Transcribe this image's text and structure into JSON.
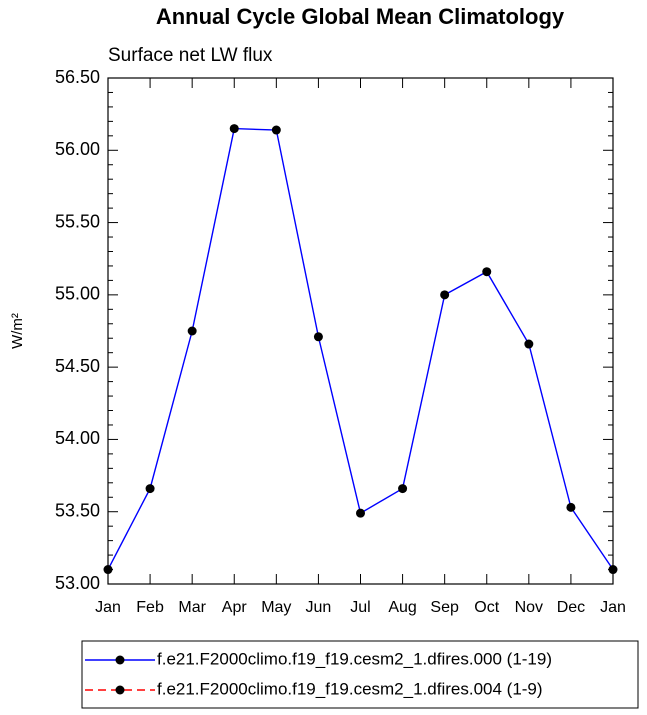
{
  "chart_data": {
    "type": "line",
    "title": "Annual Cycle Global Mean Climatology",
    "subtitle": "Surface net LW flux",
    "y_label": "W/m²",
    "categories": [
      "Jan",
      "Feb",
      "Mar",
      "Apr",
      "May",
      "Jun",
      "Jul",
      "Aug",
      "Sep",
      "Oct",
      "Nov",
      "Dec",
      "Jan"
    ],
    "series": [
      {
        "name": "f.e21.F2000climo.f19_f19.cesm2_1.dfires.000 (1-19)",
        "color": "#0000ff",
        "dash": "solid",
        "values": [
          53.1,
          53.66,
          54.75,
          56.15,
          56.14,
          54.71,
          53.49,
          53.66,
          55.0,
          55.16,
          54.66,
          53.53,
          53.1
        ]
      },
      {
        "name": "f.e21.F2000climo.f19_f19.cesm2_1.dfires.004 (1-9)",
        "color": "#ff0000",
        "dash": "dashed",
        "values": [
          null,
          null,
          null,
          null,
          null,
          null,
          null,
          null,
          null,
          null,
          null,
          null,
          null
        ]
      }
    ],
    "ylim": [
      53.0,
      56.5
    ],
    "yticks": [
      {
        "value": 53.0,
        "label": "53.00"
      },
      {
        "value": 53.5,
        "label": "53.50"
      },
      {
        "value": 54.0,
        "label": "54.00"
      },
      {
        "value": 54.5,
        "label": "54.50"
      },
      {
        "value": 55.0,
        "label": "55.00"
      },
      {
        "value": 55.5,
        "label": "55.50"
      },
      {
        "value": 56.0,
        "label": "56.00"
      },
      {
        "value": 56.5,
        "label": "56.50"
      }
    ],
    "grid": false,
    "legend": "bottom"
  }
}
